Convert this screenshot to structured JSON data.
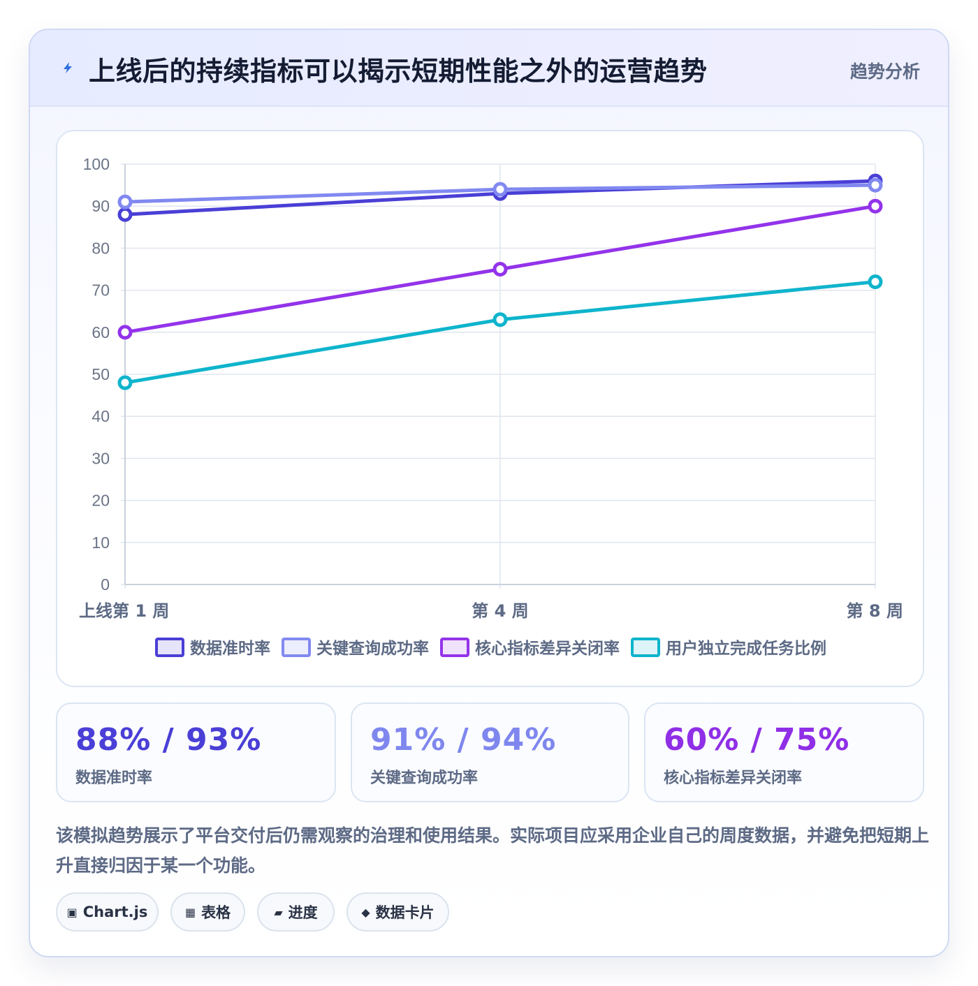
{
  "header": {
    "title": "上线后的持续指标可以揭示短期性能之外的运营趋势",
    "tag": "趋势分析",
    "icon": "lightning-icon"
  },
  "chart_data": {
    "type": "line",
    "categories": [
      "上线第 1 周",
      "第 4 周",
      "第 8 周"
    ],
    "ylim": [
      0,
      100
    ],
    "yticks": [
      0,
      10,
      20,
      30,
      40,
      50,
      60,
      70,
      80,
      90,
      100
    ],
    "grid": true,
    "legend_position": "bottom",
    "series": [
      {
        "name": "数据准时率",
        "values": [
          88,
          93,
          96
        ],
        "color": "#4a3fd6"
      },
      {
        "name": "关键查询成功率",
        "values": [
          91,
          94,
          95
        ],
        "color": "#8189f0"
      },
      {
        "name": "核心指标差异关闭率",
        "values": [
          60,
          75,
          90
        ],
        "color": "#9333ea"
      },
      {
        "name": "用户独立完成任务比例",
        "values": [
          48,
          63,
          72
        ],
        "color": "#0fb4cc"
      }
    ]
  },
  "stats": [
    {
      "value": "88% / 93%",
      "label": "数据准时率",
      "color": "#4a3fd6"
    },
    {
      "value": "91% / 94%",
      "label": "关键查询成功率",
      "color": "#7f87ee"
    },
    {
      "value": "60% / 75%",
      "label": "核心指标差异关闭率",
      "color": "#8f2fe6"
    }
  ],
  "description": "该模拟趋势展示了平台交付后仍需观察的治理和使用结果。实际项目应采用企业自己的周度数据，并避免把短期上升直接归因于某一个功能。",
  "chips": [
    {
      "icon": "▣",
      "label": "Chart.js",
      "icon_name": "chart-icon"
    },
    {
      "icon": "▦",
      "label": "表格",
      "icon_name": "table-icon"
    },
    {
      "icon": "▰",
      "label": "进度",
      "icon_name": "progress-icon"
    },
    {
      "icon": "◆",
      "label": "数据卡片",
      "icon_name": "card-icon"
    }
  ]
}
